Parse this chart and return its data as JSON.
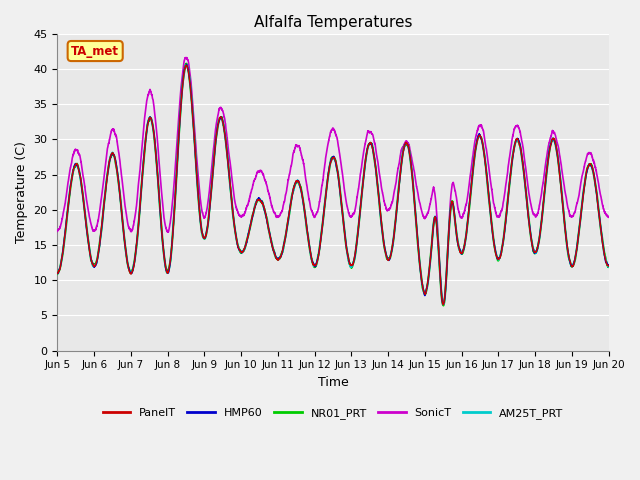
{
  "title": "Alfalfa Temperatures",
  "xlabel": "Time",
  "ylabel": "Temperature (C)",
  "ylim": [
    0,
    45
  ],
  "xlim": [
    0,
    15
  ],
  "background_color": "#f0f0f0",
  "plot_bg_color": "#e8e8e8",
  "grid_color": "white",
  "annotation_text": "TA_met",
  "annotation_box_color": "#ffff99",
  "annotation_text_color": "#cc0000",
  "annotation_border_color": "#cc6600",
  "series": {
    "PanelT": {
      "color": "#cc0000",
      "lw": 1.0
    },
    "HMP60": {
      "color": "#0000cc",
      "lw": 1.0
    },
    "NR01_PRT": {
      "color": "#00cc00",
      "lw": 1.5
    },
    "SonicT": {
      "color": "#cc00cc",
      "lw": 1.2
    },
    "AM25T_PRT": {
      "color": "#00cccc",
      "lw": 1.2
    }
  },
  "xtick_labels": [
    "Jun 5",
    "Jun 6",
    "Jun 7",
    "Jun 8",
    "Jun 9",
    "Jun 10",
    "Jun 11",
    "Jun 12",
    "Jun 13",
    "Jun 14",
    "Jun 15",
    "Jun 16",
    "Jun 17",
    "Jun 18",
    "Jun 19",
    "Jun 20"
  ],
  "xtick_positions": [
    0,
    1,
    2,
    3,
    4,
    5,
    6,
    7,
    8,
    9,
    10,
    11,
    12,
    13,
    14,
    15
  ],
  "ytick_positions": [
    0,
    5,
    10,
    15,
    20,
    25,
    30,
    35,
    40,
    45
  ]
}
